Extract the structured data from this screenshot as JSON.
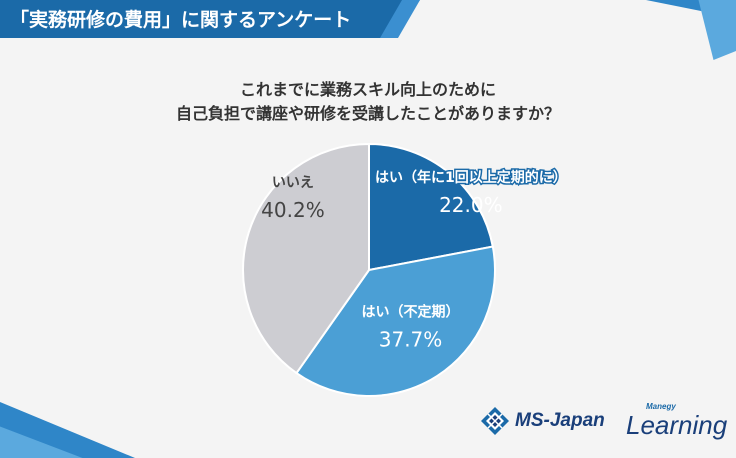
{
  "header": {
    "title": "「実務研修の費用」に関するアンケート"
  },
  "question": {
    "line1": "これまでに業務スキル向上のために",
    "line2": "自己負担で講座や研修を受講したことがありますか？"
  },
  "colors": {
    "slice_1": "#1b6aa8",
    "slice_2": "#4b9fd5",
    "slice_3": "#cdcdd2",
    "banner": "#1b6aa8",
    "label_light": "#ffffff",
    "label_dark": "#444444"
  },
  "chart_data": {
    "type": "pie",
    "title": "",
    "slices": [
      {
        "label": "はい（年に1回以上定期的に）",
        "value": 22.0,
        "value_label": "22.0%",
        "color": "#1b6aa8"
      },
      {
        "label": "はい（不定期）",
        "value": 37.7,
        "value_label": "37.7%",
        "color": "#4b9fd5"
      },
      {
        "label": "いいえ",
        "value": 40.2,
        "value_label": "40.2%",
        "color": "#cdcdd2"
      }
    ],
    "start": "12 o'clock",
    "direction": "clockwise",
    "legend": "none"
  },
  "footer": {
    "ms_logo": "MS-Japan",
    "learning_small": "Manegy",
    "learning_big": "Learning"
  }
}
